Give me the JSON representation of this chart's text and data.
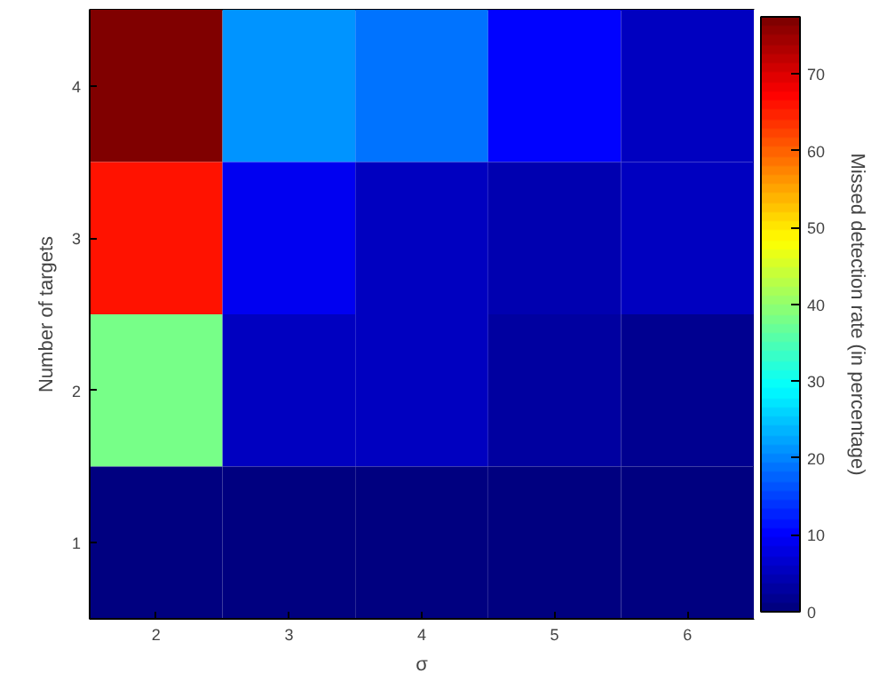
{
  "chart_data": {
    "type": "heatmap",
    "xlabel": "σ",
    "ylabel": "Number of targets",
    "clabel": "Missed detection rate (in percentage)",
    "categories": [
      "2",
      "3",
      "4",
      "5",
      "6"
    ],
    "y_categories": [
      "4",
      "3",
      "2",
      "1"
    ],
    "cells": [
      [
        77.4,
        21,
        19,
        10,
        6
      ],
      [
        66,
        9,
        6,
        4,
        5
      ],
      [
        38,
        6,
        5,
        3,
        1.5
      ],
      [
        0,
        0,
        0,
        0,
        0
      ]
    ],
    "clim": [
      0,
      77.4
    ],
    "cticks": [
      0,
      10,
      20,
      30,
      40,
      50,
      60,
      70
    ]
  }
}
